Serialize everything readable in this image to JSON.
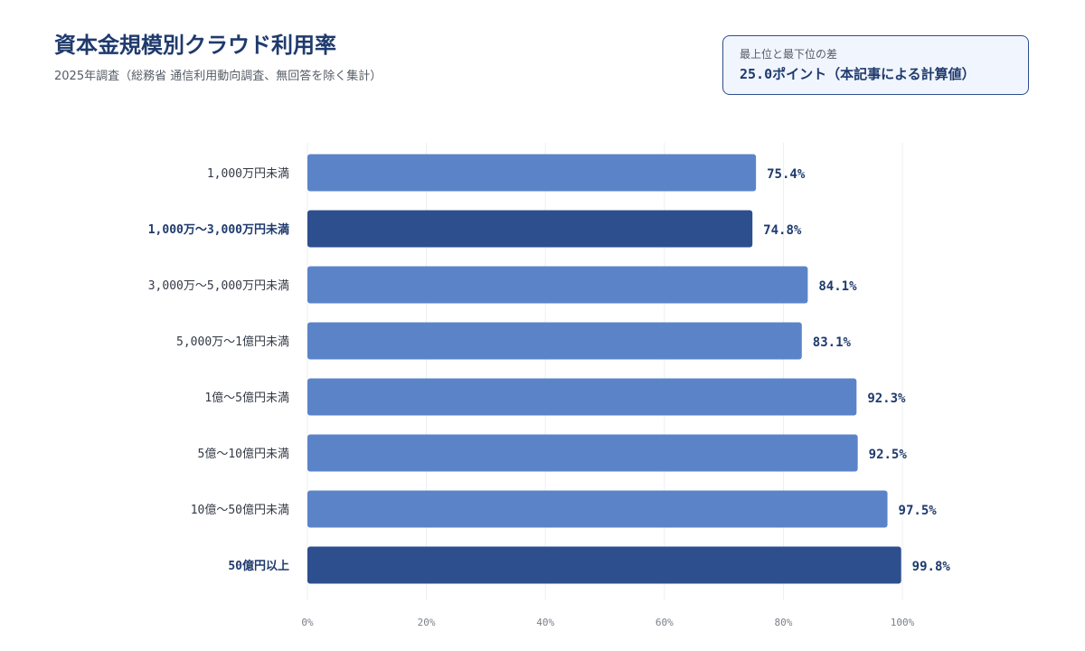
{
  "header": {
    "title": "資本金規模別クラウド利用率",
    "subtitle": "2025年調査（総務省 通信利用動向調査、無回答を除く集計）"
  },
  "callout": {
    "label": "最上位と最下位の差",
    "value": "25.0ポイント（本記事による計算値）"
  },
  "colors": {
    "bar": "#5b84c8",
    "bar_highlight": "#2d4f8e",
    "grid": "#eceff3",
    "text_dark": "#1f3a6d"
  },
  "chart_data": {
    "type": "bar",
    "orientation": "horizontal",
    "title": "資本金規模別クラウド利用率",
    "subtitle": "2025年調査（総務省 通信利用動向調査、無回答を除く集計）",
    "categories": [
      "1,000万円未満",
      "1,000万～3,000万円未満",
      "3,000万～5,000万円未満",
      "5,000万～1億円未満",
      "1億～5億円未満",
      "5億～10億円未満",
      "10億～50億円未満",
      "50億円以上"
    ],
    "values": [
      75.4,
      74.8,
      84.1,
      83.1,
      92.3,
      92.5,
      97.5,
      99.8
    ],
    "value_labels": [
      "75.4%",
      "74.8%",
      "84.1%",
      "83.1%",
      "92.3%",
      "92.5%",
      "97.5%",
      "99.8%"
    ],
    "highlighted": [
      false,
      true,
      false,
      false,
      false,
      false,
      false,
      true
    ],
    "xlim": [
      0,
      100
    ],
    "xticks": [
      0,
      20,
      40,
      60,
      80,
      100
    ],
    "xtick_labels": [
      "0%",
      "20%",
      "40%",
      "60%",
      "80%",
      "100%"
    ],
    "grid": true,
    "legend": "none"
  }
}
